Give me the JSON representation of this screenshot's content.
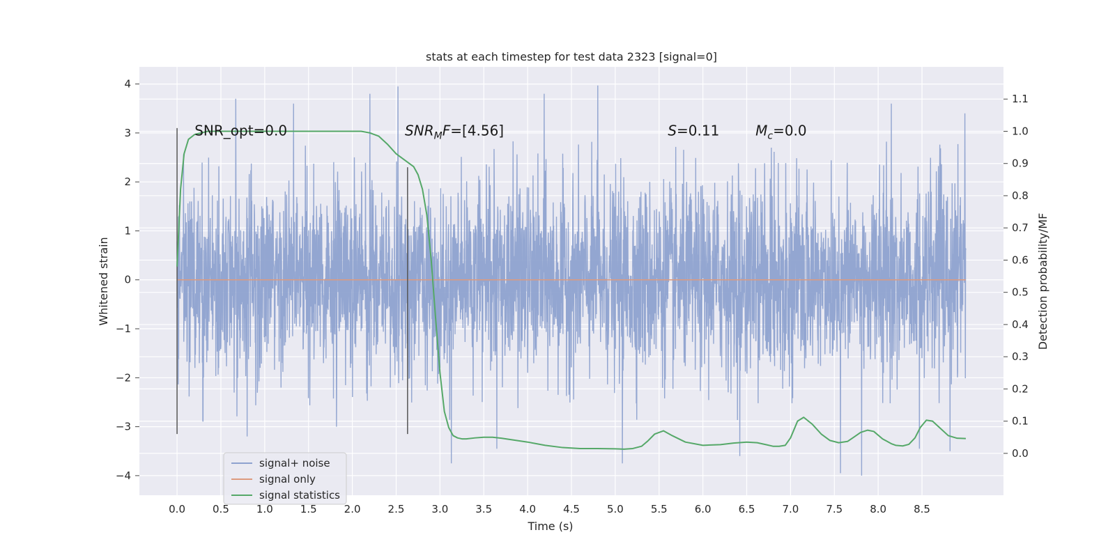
{
  "chart_data": {
    "type": "line",
    "title": "stats at each timestep for test data 2323 [signal=0]",
    "xlabel": "Time (s)",
    "ylabel_left": "Whitened strain",
    "ylabel_right": "Detection probability/MF",
    "xlim": [
      -0.43,
      9.43
    ],
    "ylim_left": [
      -4.4,
      4.35
    ],
    "ylim_right": [
      -0.13,
      1.2
    ],
    "grid": true,
    "legend_position": "lower-left",
    "x_ticks": [
      0.0,
      0.5,
      1.0,
      1.5,
      2.0,
      2.5,
      3.0,
      3.5,
      4.0,
      4.5,
      5.0,
      5.5,
      6.0,
      6.5,
      7.0,
      7.5,
      8.0,
      8.5
    ],
    "x_tick_labels": [
      "0.0",
      "0.5",
      "1.0",
      "1.5",
      "2.0",
      "2.5",
      "3.0",
      "3.5",
      "4.0",
      "4.5",
      "5.0",
      "5.5",
      "6.0",
      "6.5",
      "7.0",
      "7.5",
      "8.0",
      "8.5"
    ],
    "y_left_ticks": [
      -4,
      -3,
      -2,
      -1,
      0,
      1,
      2,
      3,
      4
    ],
    "y_left_tick_labels": [
      "−4",
      "−3",
      "−2",
      "−1",
      "0",
      "1",
      "2",
      "3",
      "4"
    ],
    "y_right_ticks": [
      0.0,
      0.1,
      0.2,
      0.3,
      0.4,
      0.5,
      0.6,
      0.7,
      0.8,
      0.9,
      1.0,
      1.1
    ],
    "y_right_tick_labels": [
      "0.0",
      "0.1",
      "0.2",
      "0.3",
      "0.4",
      "0.5",
      "0.6",
      "0.7",
      "0.8",
      "0.9",
      "1.0",
      "1.1"
    ],
    "series": [
      {
        "name": "signal+ noise",
        "axis": "left",
        "color": "#8ea2cf",
        "x_range": [
          0.0,
          9.0
        ],
        "typical_range": [
          -1.3,
          1.3
        ],
        "peaks": [
          {
            "x": 0.67,
            "y": 3.7
          },
          {
            "x": 0.8,
            "y": -3.2
          },
          {
            "x": 1.33,
            "y": 3.6
          },
          {
            "x": 1.82,
            "y": -3.0
          },
          {
            "x": 2.2,
            "y": 3.8
          },
          {
            "x": 2.52,
            "y": 3.95
          },
          {
            "x": 3.13,
            "y": -3.75
          },
          {
            "x": 3.65,
            "y": -3.45
          },
          {
            "x": 4.19,
            "y": 3.8
          },
          {
            "x": 4.8,
            "y": 3.97
          },
          {
            "x": 5.08,
            "y": -3.75
          },
          {
            "x": 6.42,
            "y": -3.6
          },
          {
            "x": 7.57,
            "y": -3.95
          },
          {
            "x": 7.81,
            "y": -4.0
          },
          {
            "x": 8.15,
            "y": 3.6
          },
          {
            "x": 8.47,
            "y": -3.45
          },
          {
            "x": 8.82,
            "y": -3.5
          },
          {
            "x": 8.99,
            "y": 3.4
          }
        ]
      },
      {
        "name": "signal only",
        "axis": "left",
        "color": "#dd9a7e",
        "x": [
          0.0,
          9.0
        ],
        "y": [
          0.0,
          0.0
        ]
      },
      {
        "name": "signal statistics",
        "axis": "right",
        "color": "#55a868",
        "x": [
          0.0,
          0.04,
          0.08,
          0.13,
          0.2,
          0.35,
          0.6,
          1.0,
          1.5,
          2.0,
          2.1,
          2.2,
          2.3,
          2.4,
          2.5,
          2.6,
          2.7,
          2.75,
          2.8,
          2.85,
          2.9,
          2.95,
          3.0,
          3.05,
          3.1,
          3.15,
          3.2,
          3.25,
          3.3,
          3.4,
          3.5,
          3.6,
          3.7,
          3.8,
          4.0,
          4.2,
          4.4,
          4.6,
          4.8,
          5.0,
          5.1,
          5.2,
          5.3,
          5.37,
          5.45,
          5.55,
          5.65,
          5.8,
          6.0,
          6.2,
          6.35,
          6.5,
          6.62,
          6.72,
          6.8,
          6.87,
          6.94,
          7.0,
          7.08,
          7.15,
          7.25,
          7.35,
          7.45,
          7.55,
          7.65,
          7.72,
          7.8,
          7.88,
          7.95,
          8.05,
          8.15,
          8.2,
          8.28,
          8.35,
          8.42,
          8.48,
          8.55,
          8.62,
          8.7,
          8.8,
          8.9,
          9.0
        ],
        "y": [
          0.58,
          0.82,
          0.93,
          0.975,
          0.99,
          1.0,
          1.0,
          1.0,
          1.0,
          1.0,
          1.0,
          0.995,
          0.985,
          0.96,
          0.93,
          0.91,
          0.89,
          0.865,
          0.82,
          0.74,
          0.6,
          0.42,
          0.25,
          0.13,
          0.08,
          0.055,
          0.048,
          0.045,
          0.045,
          0.048,
          0.05,
          0.05,
          0.047,
          0.043,
          0.035,
          0.025,
          0.018,
          0.015,
          0.015,
          0.014,
          0.013,
          0.015,
          0.022,
          0.038,
          0.06,
          0.07,
          0.055,
          0.035,
          0.025,
          0.027,
          0.032,
          0.035,
          0.033,
          0.027,
          0.022,
          0.022,
          0.025,
          0.048,
          0.1,
          0.112,
          0.09,
          0.06,
          0.04,
          0.033,
          0.037,
          0.05,
          0.065,
          0.072,
          0.068,
          0.045,
          0.03,
          0.025,
          0.023,
          0.028,
          0.048,
          0.08,
          0.103,
          0.1,
          0.08,
          0.055,
          0.047,
          0.046
        ]
      }
    ],
    "vertical_lines": [
      {
        "x": 0.0,
        "y_range": [
          -3.15,
          3.1
        ]
      },
      {
        "x": 2.63,
        "y_range": [
          -3.15,
          2.3
        ]
      }
    ],
    "annotations": [
      {
        "x": 0.2,
        "y": 3.05,
        "text": "SNR_opt=0.0"
      },
      {
        "x": 2.6,
        "y": 3.05,
        "math": true,
        "main": "SNR",
        "sub": "M",
        "main2": "F",
        "tail": "=[4.56]"
      },
      {
        "x": 5.6,
        "y": 3.05,
        "math": true,
        "main": "S",
        "tail": "=0.11"
      },
      {
        "x": 6.6,
        "y": 3.05,
        "math": true,
        "main": "M",
        "sub": "c",
        "tail": "=0.0"
      }
    ],
    "legend": [
      "signal+ noise",
      "signal only",
      "signal statistics"
    ]
  }
}
